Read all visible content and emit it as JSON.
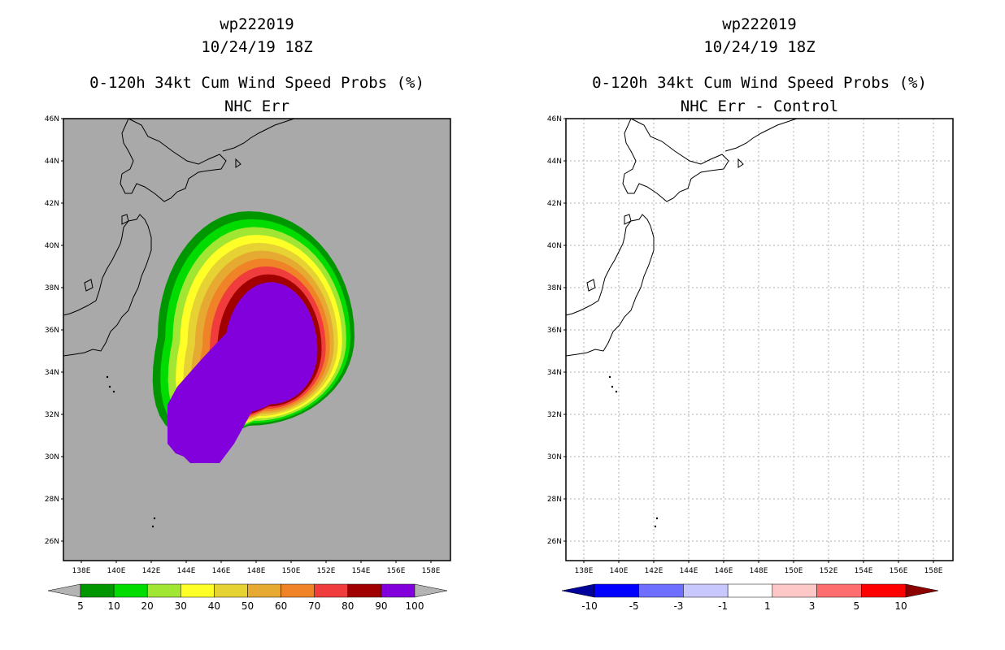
{
  "left": {
    "storm_id": "wp222019",
    "datetime": "10/24/19 18Z",
    "product": "0-120h 34kt Cum Wind Speed Probs (%)",
    "subtitle": "NHC Err",
    "colorbar": {
      "labels": [
        "5",
        "10",
        "20",
        "30",
        "40",
        "50",
        "60",
        "70",
        "80",
        "90",
        "100"
      ],
      "colors": [
        "#009600",
        "#00dc00",
        "#a0e632",
        "#ffff28",
        "#e6d232",
        "#e6aa32",
        "#f08228",
        "#f03c3c",
        "#a00000",
        "#8200dc"
      ],
      "under_color": "#b4b4b4",
      "over_color": "#b4b4b4"
    },
    "background": "#a9a9a9"
  },
  "right": {
    "storm_id": "wp222019",
    "datetime": "10/24/19 18Z",
    "product": "0-120h 34kt Cum Wind Speed Probs (%)",
    "subtitle": "NHC Err - Control",
    "colorbar": {
      "labels": [
        "-10",
        "-5",
        "-3",
        "-1",
        "1",
        "3",
        "5",
        "10"
      ],
      "colors": [
        "#0000ff",
        "#6e6eff",
        "#c8c8ff",
        "#ffffff",
        "#ffc8c8",
        "#ff6e6e",
        "#ff0000"
      ],
      "under_color": "#00009b",
      "over_color": "#8c0000"
    },
    "background": "#ffffff"
  },
  "map": {
    "lat_labels": [
      "46N",
      "44N",
      "42N",
      "40N",
      "38N",
      "36N",
      "34N",
      "32N",
      "30N",
      "28N",
      "26N"
    ],
    "lon_labels": [
      "138E",
      "140E",
      "142E",
      "144E",
      "146E",
      "148E",
      "150E",
      "152E",
      "154E",
      "156E",
      "158E"
    ],
    "prob_levels": [
      5,
      10,
      20,
      30,
      40,
      50,
      60,
      70,
      80,
      90
    ]
  }
}
